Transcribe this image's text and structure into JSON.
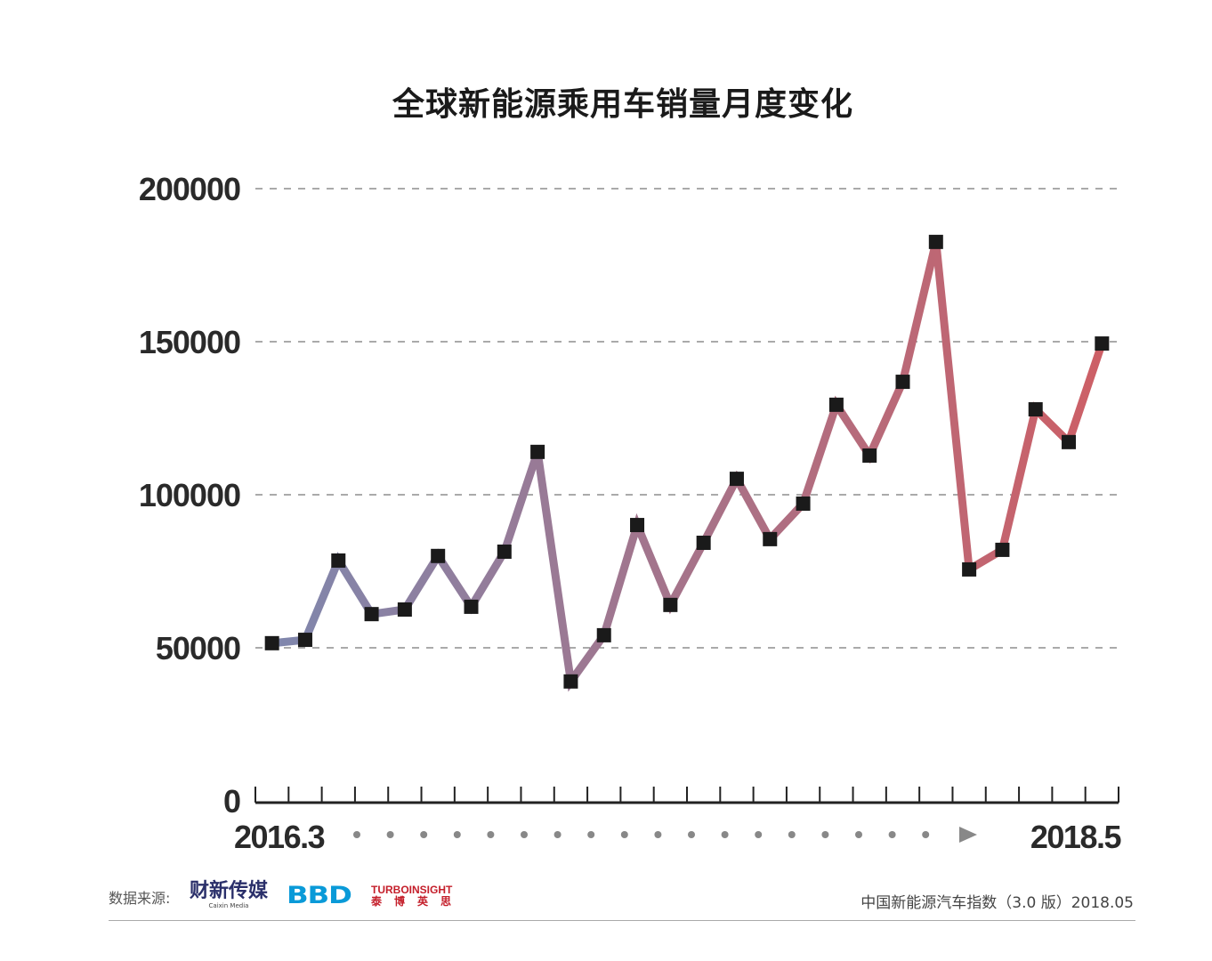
{
  "chart_data": {
    "type": "line",
    "title": "全球新能源乘用车销量月度变化",
    "x_start_label": "2016.3",
    "x_end_label": "2018.5",
    "ylim": [
      0,
      200000
    ],
    "yticks": [
      0,
      50000,
      100000,
      150000,
      200000
    ],
    "ytick_labels": [
      "0",
      "50000",
      "100000",
      "150000",
      "200000"
    ],
    "grid": "horizontal dashed",
    "values": [
      51500,
      52600,
      78500,
      61000,
      62500,
      80000,
      63400,
      81400,
      114000,
      39000,
      54100,
      90100,
      64000,
      84300,
      105200,
      85500,
      97100,
      129400,
      112800,
      136900,
      182600,
      75600,
      82000,
      127900,
      117200,
      149400
    ],
    "colors": {
      "start": "#7f87ad",
      "end": "#cd5f66",
      "marker": "#1a1a1a"
    }
  },
  "footer": {
    "source_label": "数据来源:",
    "logos": {
      "caixin": "财新传媒",
      "caixin_en": "Caixin Media",
      "bbd": "BBD",
      "turbo_en": "TURBOINSIGHT",
      "turbo_cn": "泰博英思"
    },
    "right_text": "中国新能源汽车指数（3.0 版）2018.05"
  }
}
